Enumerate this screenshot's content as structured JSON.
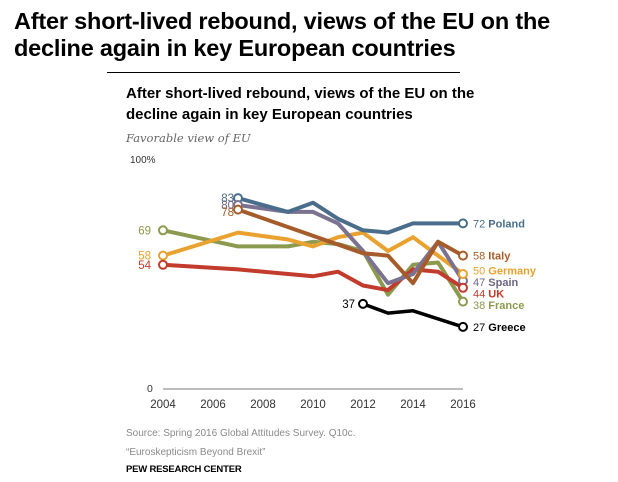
{
  "headline": "After short-lived rebound, views of the EU on the decline again in key European countries",
  "chart_data": {
    "type": "line",
    "title": "After short-lived rebound, views of the EU on the decline again in key European countries",
    "subtitle": "Favorable view of EU",
    "xlabel": "",
    "ylabel": "",
    "ylim": [
      0,
      100
    ],
    "xlim": [
      2004,
      2016
    ],
    "y_tick_labels": [
      "100%",
      "0"
    ],
    "x_ticks": [
      2004,
      2006,
      2008,
      2010,
      2012,
      2014,
      2016
    ],
    "grid": false,
    "series": [
      {
        "name": "Poland",
        "color": "#4a6d8c",
        "points": [
          [
            2007,
            83
          ],
          [
            2009,
            77
          ],
          [
            2010,
            81
          ],
          [
            2011,
            74
          ],
          [
            2012,
            69
          ],
          [
            2013,
            68
          ],
          [
            2014,
            72
          ],
          [
            2015,
            72
          ],
          [
            2016,
            72
          ]
        ],
        "start_label": "83",
        "end_label": "72",
        "label_color": "#4a6d8c"
      },
      {
        "name": "Spain",
        "color": "#7b7190",
        "points": [
          [
            2007,
            80
          ],
          [
            2009,
            77
          ],
          [
            2010,
            77
          ],
          [
            2011,
            72
          ],
          [
            2012,
            60
          ],
          [
            2013,
            46
          ],
          [
            2014,
            50
          ],
          [
            2015,
            64
          ],
          [
            2016,
            47
          ]
        ],
        "start_label": "80",
        "end_label": "47",
        "label_color": "#6e6585"
      },
      {
        "name": "Italy",
        "color": "#a65c2a",
        "points": [
          [
            2007,
            78
          ],
          [
            2012,
            59
          ],
          [
            2013,
            58
          ],
          [
            2014,
            46
          ],
          [
            2015,
            64
          ],
          [
            2016,
            58
          ]
        ],
        "start_label": "78",
        "end_label": "58",
        "label_color": "#a65c2a"
      },
      {
        "name": "Germany",
        "color": "#e9a22f",
        "points": [
          [
            2004,
            58
          ],
          [
            2007,
            68
          ],
          [
            2009,
            65
          ],
          [
            2010,
            62
          ],
          [
            2011,
            66
          ],
          [
            2012,
            68
          ],
          [
            2013,
            60
          ],
          [
            2014,
            66
          ],
          [
            2015,
            58
          ],
          [
            2016,
            50
          ]
        ],
        "start_label": "58",
        "end_label": "50",
        "label_color": "#e9a22f"
      },
      {
        "name": "France",
        "color": "#8c9a4f",
        "points": [
          [
            2004,
            69
          ],
          [
            2007,
            62
          ],
          [
            2009,
            62
          ],
          [
            2010,
            64
          ],
          [
            2011,
            63
          ],
          [
            2012,
            60
          ],
          [
            2013,
            41
          ],
          [
            2014,
            54
          ],
          [
            2015,
            55
          ],
          [
            2016,
            38
          ]
        ],
        "start_label": "69",
        "end_label": "38",
        "label_color": "#8c9a4f"
      },
      {
        "name": "UK",
        "color": "#c23b2c",
        "points": [
          [
            2004,
            54
          ],
          [
            2007,
            52
          ],
          [
            2009,
            50
          ],
          [
            2010,
            49
          ],
          [
            2011,
            51
          ],
          [
            2012,
            45
          ],
          [
            2013,
            43
          ],
          [
            2014,
            52
          ],
          [
            2015,
            51
          ],
          [
            2016,
            44
          ]
        ],
        "start_label": "54",
        "end_label": "44",
        "label_color": "#c23b2c"
      },
      {
        "name": "Greece",
        "color": "#000000",
        "points": [
          [
            2012,
            37
          ],
          [
            2013,
            33
          ],
          [
            2014,
            34
          ],
          [
            2016,
            27
          ]
        ],
        "start_label": "37",
        "end_label": "27",
        "label_color": "#000000"
      }
    ]
  },
  "footer": {
    "source": "Source: Spring 2016 Global Attitudes Survey. Q10c.",
    "report": "“Euroskepticism Beyond Brexit”",
    "org": "PEW RESEARCH CENTER"
  }
}
